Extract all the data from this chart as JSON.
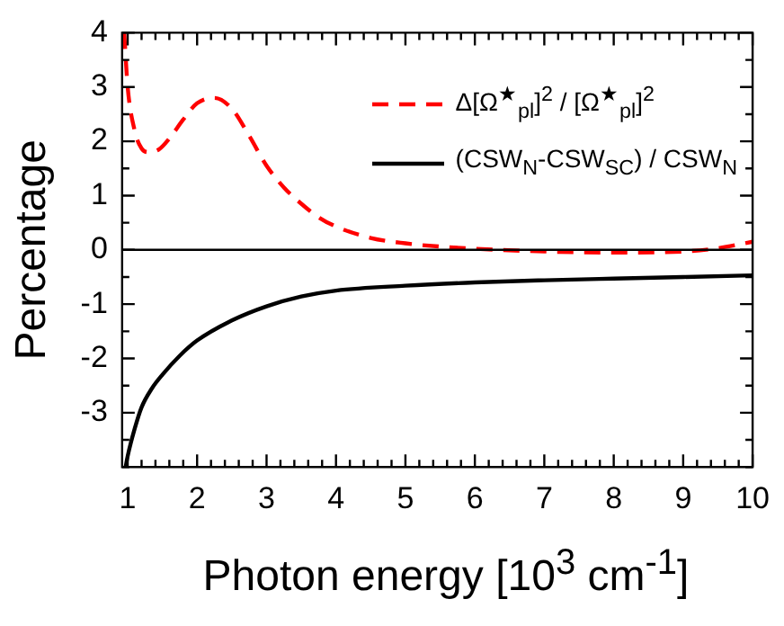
{
  "chart_data": {
    "type": "line",
    "xlabel": "Photon energy [10$^{3}$ cm$^{-1}$]",
    "ylabel": "Percentage",
    "xlim": [
      0.92,
      10
    ],
    "ylim": [
      -4,
      4
    ],
    "xticks": [
      1,
      {
        "value": 1.2,
        "label": null
      },
      {
        "value": 1.4,
        "label": null
      },
      {
        "value": 1.6,
        "label": null
      },
      {
        "value": 1.8,
        "label": null
      },
      2,
      {
        "value": 2.2,
        "label": null
      },
      {
        "value": 2.4,
        "label": null
      },
      {
        "value": 2.6,
        "label": null
      },
      {
        "value": 2.8,
        "label": null
      },
      3,
      {
        "value": 3.2,
        "label": null
      },
      {
        "value": 3.4,
        "label": null
      },
      {
        "value": 3.6,
        "label": null
      },
      {
        "value": 3.8,
        "label": null
      },
      4,
      {
        "value": 4.2,
        "label": null
      },
      {
        "value": 4.4,
        "label": null
      },
      {
        "value": 4.6,
        "label": null
      },
      {
        "value": 4.8,
        "label": null
      },
      5,
      {
        "value": 5.2,
        "label": null
      },
      {
        "value": 5.4,
        "label": null
      },
      {
        "value": 5.6,
        "label": null
      },
      {
        "value": 5.8,
        "label": null
      },
      6,
      {
        "value": 6.2,
        "label": null
      },
      {
        "value": 6.4,
        "label": null
      },
      {
        "value": 6.6,
        "label": null
      },
      {
        "value": 6.8,
        "label": null
      },
      7,
      {
        "value": 7.2,
        "label": null
      },
      {
        "value": 7.4,
        "label": null
      },
      {
        "value": 7.6,
        "label": null
      },
      {
        "value": 7.8,
        "label": null
      },
      8,
      {
        "value": 8.2,
        "label": null
      },
      {
        "value": 8.4,
        "label": null
      },
      {
        "value": 8.6,
        "label": null
      },
      {
        "value": 8.8,
        "label": null
      },
      9,
      {
        "value": 9.2,
        "label": null
      },
      {
        "value": 9.4,
        "label": null
      },
      {
        "value": 9.6,
        "label": null
      },
      {
        "value": 9.8,
        "label": null
      },
      10
    ],
    "yticks": [
      {
        "value": -4,
        "label": null
      },
      {
        "value": -3.5,
        "label": null
      },
      -3,
      {
        "value": -2.5,
        "label": null
      },
      -2,
      {
        "value": -1.5,
        "label": null
      },
      -1,
      {
        "value": -0.5,
        "label": null
      },
      0,
      {
        "value": 0.5,
        "label": null
      },
      1,
      {
        "value": 1.5,
        "label": null
      },
      2,
      {
        "value": 2.5,
        "label": null
      },
      3,
      {
        "value": 3.5,
        "label": null
      },
      4
    ],
    "legend": "top right",
    "marker": "none",
    "ref_lines": [
      {
        "axis": "y",
        "value": 0,
        "color": "#000000"
      }
    ],
    "series": [
      {
        "name": "Δ[Ω$^{★}$$_{pl}$]$^{2}$ / [Ω$^{★}$$_{pl}$]$^{2}$",
        "color": "#ff0000",
        "line_style": "dashed",
        "x": [
          0.95,
          1.0,
          1.1,
          1.2,
          1.3,
          1.45,
          1.6,
          1.8,
          2.0,
          2.25,
          2.5,
          2.75,
          3.0,
          3.25,
          3.5,
          3.75,
          4.0,
          4.5,
          5.0,
          5.5,
          6.0,
          7.0,
          8.0,
          9.0,
          9.5,
          10.0
        ],
        "values": [
          4.0,
          3.0,
          2.2,
          1.87,
          1.8,
          1.85,
          2.05,
          2.4,
          2.7,
          2.8,
          2.6,
          2.1,
          1.55,
          1.15,
          0.85,
          0.6,
          0.43,
          0.22,
          0.12,
          0.06,
          0.02,
          -0.03,
          -0.05,
          -0.03,
          0.03,
          0.15
        ]
      },
      {
        "name": "(CSW$_{N}$-CSW$_{SC}$) / CSW$_{N}$",
        "color": "#000000",
        "line_style": "solid",
        "x": [
          0.97,
          1.0,
          1.1,
          1.2,
          1.35,
          1.5,
          1.75,
          2.0,
          2.5,
          3.0,
          3.5,
          4.0,
          5.0,
          6.0,
          7.0,
          8.0,
          9.0,
          10.0
        ],
        "values": [
          -4.0,
          -3.8,
          -3.3,
          -2.9,
          -2.55,
          -2.3,
          -1.95,
          -1.67,
          -1.3,
          -1.04,
          -0.86,
          -0.75,
          -0.66,
          -0.6,
          -0.56,
          -0.53,
          -0.5,
          -0.47
        ]
      }
    ]
  }
}
